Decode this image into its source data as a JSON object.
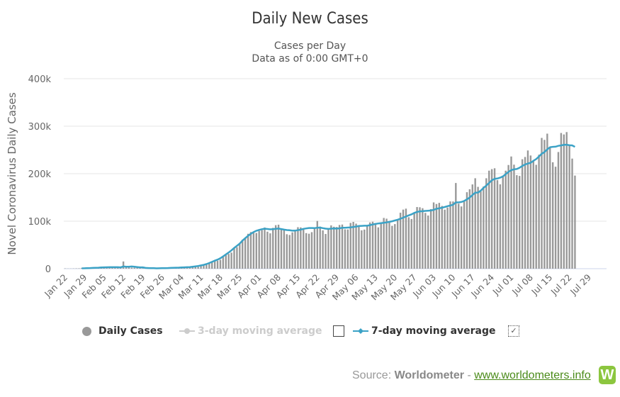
{
  "title": "Daily New Cases",
  "subtitle1": "Cases per Day",
  "subtitle2": "Data as of 0:00 GMT+0",
  "legend": {
    "daily": "Daily Cases",
    "ma3": "3-day moving average",
    "ma7": "7-day moving average"
  },
  "source": {
    "label": "Source:",
    "name": "Worldometer",
    "sep": "-",
    "link": "www.worldometers.info",
    "logo": "W"
  },
  "colors": {
    "bar": "#999999",
    "ma7": "#3ba2c6",
    "ma3": "#cccccc",
    "grid": "#e6e6e6"
  },
  "chart_data": {
    "type": "bar",
    "title": "Daily New Cases",
    "ylabel": "Novel Coronavirus Daily Cases",
    "xlabel": "",
    "ylim": [
      0,
      400000
    ],
    "yticks": [
      0,
      100000,
      200000,
      300000,
      400000
    ],
    "ytick_labels": [
      "0",
      "100k",
      "200k",
      "300k",
      "400k"
    ],
    "xtick_labels": [
      "Jan 22",
      "Jan 29",
      "Feb 05",
      "Feb 12",
      "Feb 19",
      "Feb 26",
      "Mar 04",
      "Mar 11",
      "Mar 18",
      "Mar 25",
      "Apr 01",
      "Apr 08",
      "Apr 15",
      "Apr 22",
      "Apr 29",
      "May 06",
      "May 13",
      "May 20",
      "May 27",
      "Jun 03",
      "Jun 10",
      "Jun 17",
      "Jun 24",
      "Jul 01",
      "Jul 08",
      "Jul 15",
      "Jul 22",
      "Jul 29"
    ],
    "start_date": "Jan 22",
    "unit": "thousand cases",
    "series": [
      {
        "name": "Daily Cases",
        "values": [
          0.6,
          0.3,
          0.3,
          0.5,
          0.7,
          0.8,
          1.7,
          1.7,
          2.1,
          2.1,
          2.6,
          2.8,
          3.2,
          3.9,
          3.7,
          3.2,
          3.4,
          2.6,
          2.7,
          2.1,
          2.0,
          15.2,
          5.1,
          2.7,
          2.1,
          2.0,
          1.9,
          1.8,
          0.6,
          0.4,
          1.0,
          0.7,
          0.9,
          0.8,
          1.4,
          1.4,
          1.8,
          1.9,
          2.1,
          2.5,
          2.2,
          2.5,
          3.6,
          4.0,
          4.2,
          4.5,
          4.9,
          4.9,
          3.8,
          5.4,
          7.5,
          9.8,
          11.0,
          13.5,
          16.6,
          16.8,
          18.7,
          26.1,
          29.9,
          31.1,
          33.8,
          43.6,
          45.2,
          53.5,
          61.1,
          64.1,
          73.5,
          77.1,
          76.9,
          75.2,
          79.7,
          81.2,
          86.7,
          77.9,
          74.4,
          85.9,
          91.6,
          92.6,
          84.9,
          82.4,
          72.5,
          71.0,
          76.5,
          81.4,
          87.3,
          86.9,
          84.0,
          74.9,
          73.6,
          76.9,
          84.7,
          100.5,
          88.6,
          80.7,
          73.1,
          82.1,
          91.2,
          88.3,
          87.7,
          92.0,
          92.9,
          82.8,
          82.5,
          96.4,
          98.5,
          94.8,
          90.2,
          80.8,
          82.3,
          91.1,
          97.4,
          98.9,
          96.1,
          87.0,
          95.5,
          106.8,
          105.3,
          97.8,
          90.2,
          93.9,
          102.5,
          117.8,
          124.4,
          126.4,
          108.3,
          104.6,
          118.6,
          129.8,
          129.3,
          127.3,
          117.4,
          111.9,
          125.4,
          139.5,
          136.2,
          138.6,
          132.1,
          124.3,
          128.8,
          141.6,
          141.5,
          180.4,
          136.8,
          131.0,
          141.3,
          161.0,
          167.2,
          177.4,
          190.4,
          172.3,
          162.7,
          173.1,
          190.4,
          206.4,
          209.6,
          211.4,
          186.4,
          177.6,
          195.9,
          206.3,
          218.3,
          236.2,
          219.0,
          196.9,
          195.3,
          230.4,
          235.2,
          248.9,
          238.3,
          227.1,
          218.7,
          240.0,
          275.3,
          271.2,
          284.3,
          256.0,
          224.1,
          214.7,
          245.6,
          285.7,
          282.6,
          287.6,
          258.7,
          231.8,
          196.0
        ]
      },
      {
        "name": "3-day moving average",
        "values": [],
        "hidden": true
      },
      {
        "name": "7-day moving average",
        "values": [
          null,
          null,
          null,
          null,
          null,
          null,
          0.7,
          0.9,
          1.2,
          1.4,
          1.6,
          1.9,
          2.1,
          2.5,
          2.9,
          3.0,
          3.1,
          3.1,
          3.2,
          3.1,
          2.8,
          4.7,
          4.2,
          4.2,
          4.6,
          4.0,
          3.5,
          2.9,
          2.9,
          1.7,
          1.3,
          1.1,
          1.0,
          0.8,
          0.9,
          1.0,
          1.2,
          1.4,
          1.6,
          1.9,
          2.1,
          2.3,
          2.6,
          2.9,
          3.2,
          3.5,
          4.2,
          4.9,
          5.7,
          6.8,
          8.1,
          9.7,
          11.9,
          14.3,
          16.8,
          19.1,
          22.0,
          25.9,
          30.0,
          34.1,
          38.5,
          43.7,
          48.2,
          52.9,
          59.1,
          64.2,
          69.3,
          73.4,
          77.1,
          79.9,
          81.7,
          83.2,
          84.2,
          83.6,
          82.8,
          83.2,
          83.9,
          84.5,
          83.4,
          82.3,
          81.3,
          80.9,
          80.0,
          80.1,
          81.0,
          82.2,
          83.9,
          84.8,
          85.7,
          85.6,
          85.4,
          86.2,
          86.5,
          85.4,
          84.4,
          83.8,
          84.4,
          84.6,
          84.5,
          85.0,
          86.2,
          86.1,
          86.5,
          87.0,
          87.9,
          88.6,
          89.8,
          90.1,
          90.4,
          90.4,
          91.6,
          93.1,
          94.2,
          95.2,
          95.9,
          96.7,
          97.5,
          98.6,
          99.9,
          101.5,
          103.1,
          105.1,
          107.4,
          109.9,
          112.3,
          114.5,
          117.4,
          119.5,
          120.7,
          121.1,
          121.7,
          122.1,
          122.6,
          123.8,
          126.1,
          127.1,
          128.3,
          129.8,
          131.7,
          133.0,
          134.6,
          139.6,
          139.6,
          140.4,
          142.5,
          146.0,
          149.8,
          155.0,
          160.1,
          160.3,
          164.4,
          170.0,
          174.9,
          180.5,
          186.0,
          189.2,
          189.8,
          191.6,
          194.3,
          199.1,
          203.7,
          207.5,
          209.2,
          209.9,
          212.4,
          216.3,
          219.4,
          221.3,
          223.0,
          227.1,
          230.7,
          236.1,
          242.0,
          245.5,
          251.2,
          255.6,
          256.5,
          256.8,
          258.6,
          259.6,
          260.8,
          261.1,
          259.9,
          259.6,
          256.5
        ]
      }
    ]
  }
}
